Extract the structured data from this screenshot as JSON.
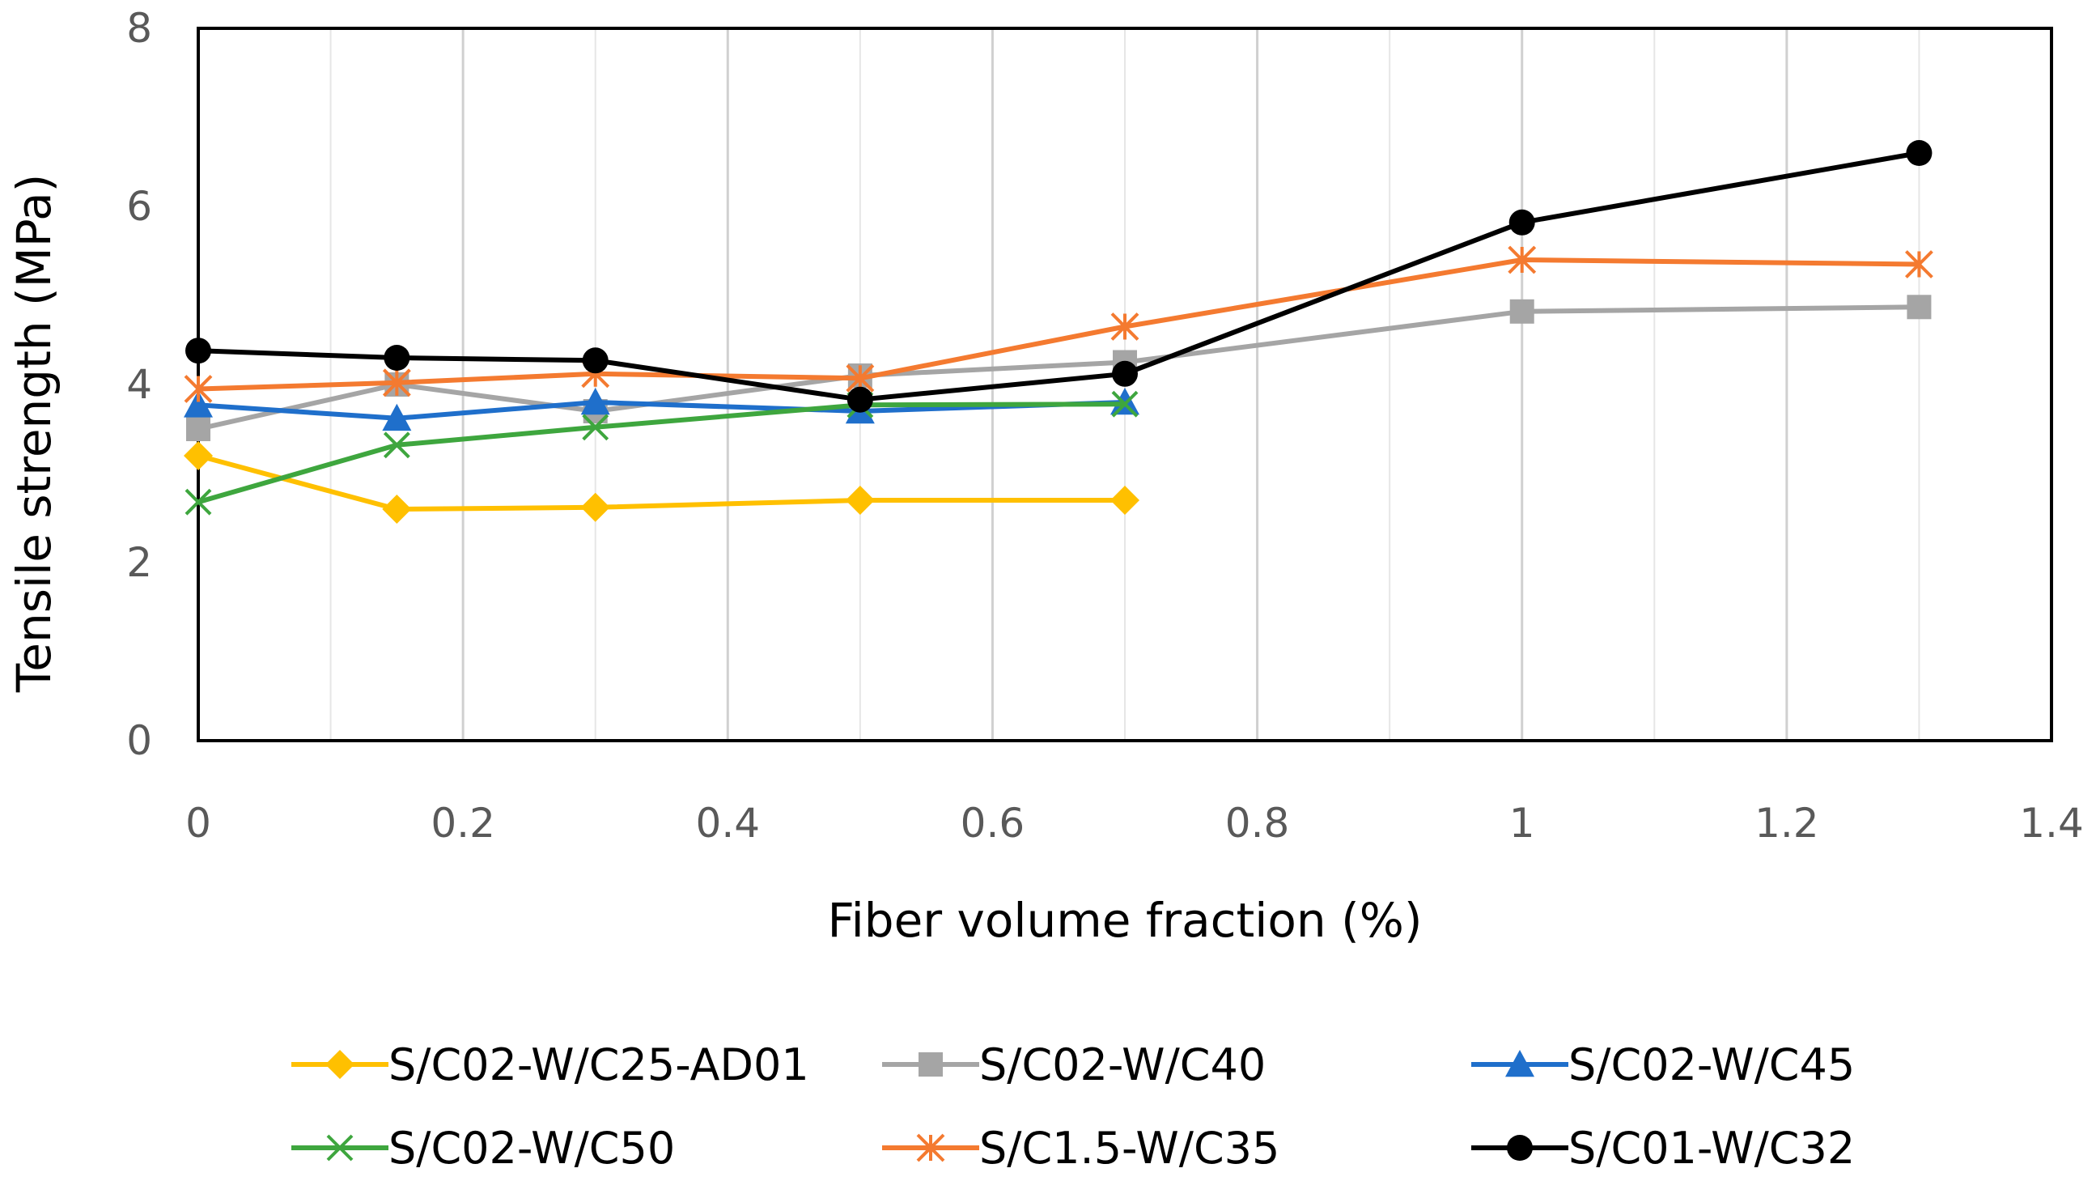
{
  "chart_data": {
    "type": "line",
    "title": "",
    "xlabel": "Fiber volume fraction (%)",
    "ylabel": "Tensile strength (MPa)",
    "xlim": [
      0,
      1.4
    ],
    "ylim": [
      0,
      8
    ],
    "x_ticks": [
      "0",
      "0.2",
      "0.4",
      "0.6",
      "0.8",
      "1",
      "1.2",
      "1.4"
    ],
    "y_ticks": [
      "0",
      "2",
      "4",
      "6",
      "8"
    ],
    "grid": "vertical major and minor gridlines",
    "legend_position": "bottom",
    "series": [
      {
        "name": "S/C02-W/C25-AD01",
        "color": "#FFC000",
        "marker": "diamond",
        "x": [
          0,
          0.15,
          0.3,
          0.5,
          0.7
        ],
        "y": [
          3.2,
          2.6,
          2.62,
          2.7,
          2.7
        ]
      },
      {
        "name": "S/C02-W/C40",
        "color": "#A5A5A5",
        "marker": "square",
        "x": [
          0,
          0.15,
          0.3,
          0.5,
          0.7,
          1.0,
          1.3
        ],
        "y": [
          3.5,
          4.0,
          3.7,
          4.1,
          4.25,
          4.82,
          4.87
        ]
      },
      {
        "name": "S/C02-W/C45",
        "color": "#1F6FCB",
        "marker": "triangle",
        "x": [
          0,
          0.15,
          0.3,
          0.5,
          0.7
        ],
        "y": [
          3.77,
          3.62,
          3.8,
          3.7,
          3.8
        ]
      },
      {
        "name": "S/C02-W/C50",
        "color": "#3EA63E",
        "marker": "x",
        "x": [
          0,
          0.15,
          0.3,
          0.5,
          0.7
        ],
        "y": [
          2.68,
          3.32,
          3.52,
          3.77,
          3.78
        ]
      },
      {
        "name": "S/C1.5-W/C35",
        "color": "#F47A30",
        "marker": "asterisk",
        "x": [
          0,
          0.15,
          0.3,
          0.5,
          0.7,
          1.0,
          1.3
        ],
        "y": [
          3.95,
          4.02,
          4.12,
          4.07,
          4.65,
          5.4,
          5.35
        ]
      },
      {
        "name": "S/C01-W/C32",
        "color": "#000000",
        "marker": "circle",
        "x": [
          0,
          0.15,
          0.3,
          0.5,
          0.7,
          1.0,
          1.3
        ],
        "y": [
          4.38,
          4.3,
          4.27,
          3.83,
          4.12,
          5.82,
          6.6
        ]
      }
    ]
  }
}
